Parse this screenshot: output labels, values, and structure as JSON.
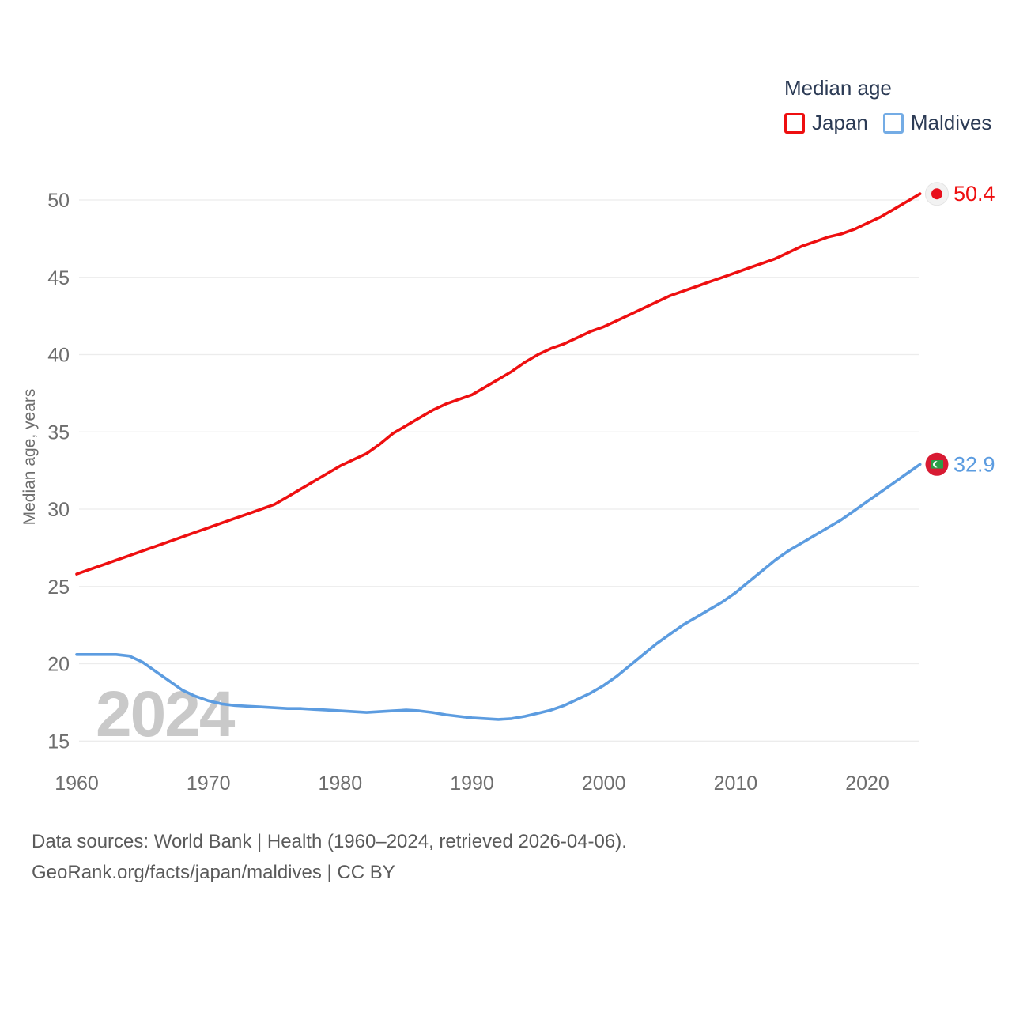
{
  "legend": {
    "title": "Median age",
    "items": [
      {
        "label": "Japan",
        "color": "#ee0f10"
      },
      {
        "label": "Maldives",
        "color": "#74ace5"
      }
    ]
  },
  "watermark": "2024",
  "footer": {
    "line1": "Data sources: World Bank | Health (1960–2024, retrieved 2026-04-06).",
    "line2": "GeoRank.org/facts/japan/maldives | CC BY"
  },
  "chart_data": {
    "type": "line",
    "title": "Median age",
    "xlabel": "",
    "ylabel": "Median age, years",
    "x_ticks": [
      1960,
      1970,
      1980,
      1990,
      2000,
      2010,
      2020
    ],
    "y_ticks": [
      15,
      20,
      25,
      30,
      35,
      40,
      45,
      50
    ],
    "xlim": [
      1960,
      2024
    ],
    "ylim": [
      15,
      50
    ],
    "grid": "horizontal",
    "legend_position": "top-right",
    "x": [
      1960,
      1961,
      1962,
      1963,
      1964,
      1965,
      1966,
      1967,
      1968,
      1969,
      1970,
      1971,
      1972,
      1973,
      1974,
      1975,
      1976,
      1977,
      1978,
      1979,
      1980,
      1981,
      1982,
      1983,
      1984,
      1985,
      1986,
      1987,
      1988,
      1989,
      1990,
      1991,
      1992,
      1993,
      1994,
      1995,
      1996,
      1997,
      1998,
      1999,
      2000,
      2001,
      2002,
      2003,
      2004,
      2005,
      2006,
      2007,
      2008,
      2009,
      2010,
      2011,
      2012,
      2013,
      2014,
      2015,
      2016,
      2017,
      2018,
      2019,
      2020,
      2021,
      2022,
      2023,
      2024
    ],
    "series": [
      {
        "name": "Japan",
        "color": "#ee0f10",
        "flag": "japan",
        "end_label": "50.4",
        "values": [
          25.8,
          26.1,
          26.4,
          26.7,
          27.0,
          27.3,
          27.6,
          27.9,
          28.2,
          28.5,
          28.8,
          29.1,
          29.4,
          29.7,
          30.0,
          30.3,
          30.8,
          31.3,
          31.8,
          32.3,
          32.8,
          33.2,
          33.6,
          34.2,
          34.9,
          35.4,
          35.9,
          36.4,
          36.8,
          37.1,
          37.4,
          37.9,
          38.4,
          38.9,
          39.5,
          40.0,
          40.4,
          40.7,
          41.1,
          41.5,
          41.8,
          42.2,
          42.6,
          43.0,
          43.4,
          43.8,
          44.1,
          44.4,
          44.7,
          45.0,
          45.3,
          45.6,
          45.9,
          46.2,
          46.6,
          47.0,
          47.3,
          47.6,
          47.8,
          48.1,
          48.5,
          48.9,
          49.4,
          49.9,
          50.4
        ]
      },
      {
        "name": "Maldives",
        "color": "#5c9ce0",
        "flag": "maldives",
        "end_label": "32.9",
        "values": [
          20.6,
          20.6,
          20.6,
          20.6,
          20.5,
          20.1,
          19.5,
          18.9,
          18.3,
          17.9,
          17.6,
          17.4,
          17.3,
          17.25,
          17.2,
          17.15,
          17.1,
          17.1,
          17.05,
          17.0,
          16.95,
          16.9,
          16.85,
          16.9,
          16.95,
          17.0,
          16.95,
          16.85,
          16.7,
          16.6,
          16.5,
          16.45,
          16.4,
          16.45,
          16.6,
          16.8,
          17.0,
          17.3,
          17.7,
          18.1,
          18.6,
          19.2,
          19.9,
          20.6,
          21.3,
          21.9,
          22.5,
          23.0,
          23.5,
          24.0,
          24.6,
          25.3,
          26.0,
          26.7,
          27.3,
          27.8,
          28.3,
          28.8,
          29.3,
          29.9,
          30.5,
          31.1,
          31.7,
          32.3,
          32.9
        ]
      }
    ]
  },
  "colors": {
    "grid": "#ececec",
    "tick_text": "#6e6e6e",
    "axis_title": "#6e6e6e",
    "watermark": "#c9c9c9",
    "japan_flag_bg": "#f2f2f2",
    "japan_flag_dot": "#e8101d",
    "maldives_flag_bg": "#d81b33",
    "maldives_flag_green": "#2b9e47",
    "maldives_flag_crescent": "#ffffff"
  }
}
